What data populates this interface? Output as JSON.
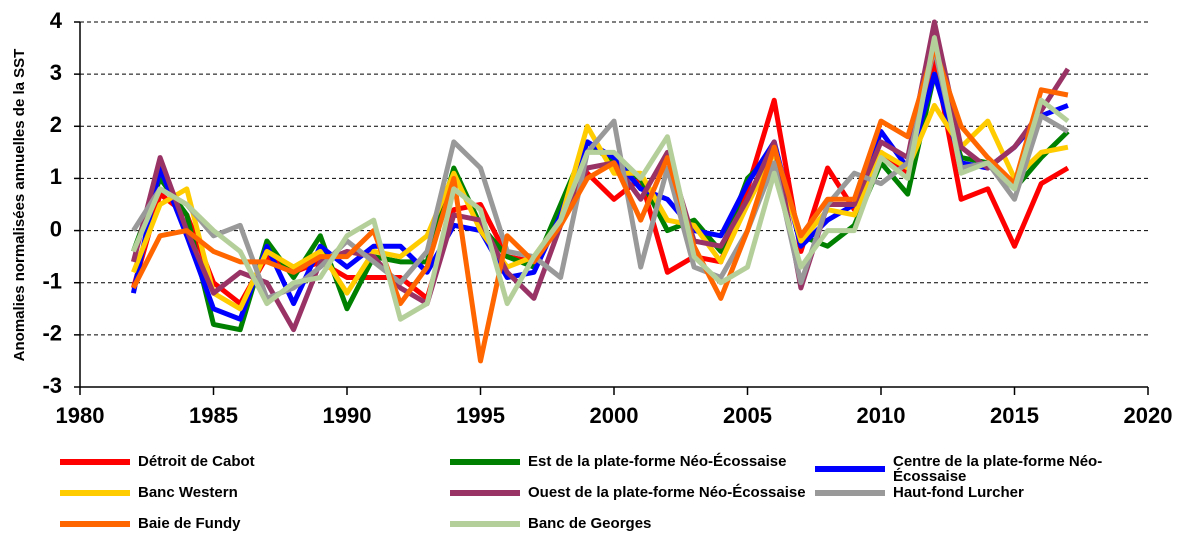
{
  "chart_data": {
    "type": "line",
    "ylabel": "Anomalies normalisées annuelles de la SST",
    "x": [
      1982,
      1983,
      1984,
      1985,
      1986,
      1987,
      1988,
      1989,
      1990,
      1991,
      1992,
      1993,
      1994,
      1995,
      1996,
      1997,
      1998,
      1999,
      2000,
      2001,
      2002,
      2003,
      2004,
      2005,
      2006,
      2007,
      2008,
      2009,
      2010,
      2011,
      2012,
      2013,
      2014,
      2015,
      2016,
      2017
    ],
    "xlim": [
      1980,
      2020
    ],
    "xticks": [
      1980,
      1985,
      1990,
      1995,
      2000,
      2005,
      2010,
      2015,
      2020
    ],
    "ylim": [
      -3,
      4
    ],
    "yticks": [
      -3,
      -2,
      -1,
      0,
      1,
      2,
      3,
      4
    ],
    "grid": true,
    "series": [
      {
        "name": "Détroit de Cabot",
        "color": "#ff0000",
        "values": [
          -1.1,
          0.7,
          0.3,
          -1.0,
          -1.4,
          -0.5,
          -0.8,
          -0.6,
          -0.9,
          -0.9,
          -0.9,
          -1.3,
          0.4,
          0.5,
          -0.5,
          -0.6,
          0.2,
          1.1,
          0.6,
          1.0,
          -0.8,
          -0.5,
          -0.6,
          0.8,
          2.5,
          -0.4,
          1.2,
          0.4,
          1.5,
          1.1,
          3.3,
          0.6,
          0.8,
          -0.3,
          0.9,
          1.2
        ]
      },
      {
        "name": "Est de la plate-forme Néo-Écossaise",
        "color": "#008000",
        "values": [
          -0.4,
          1.0,
          0.3,
          -1.8,
          -1.9,
          -0.2,
          -0.9,
          -0.1,
          -1.5,
          -0.5,
          -0.6,
          -0.6,
          1.2,
          0.1,
          -0.5,
          -0.7,
          0.5,
          1.7,
          1.3,
          1.0,
          0.0,
          0.2,
          -0.4,
          1.0,
          1.5,
          -0.1,
          -0.3,
          0.1,
          1.3,
          0.7,
          3.0,
          1.4,
          1.3,
          0.8,
          1.4,
          1.9
        ]
      },
      {
        "name": "Centre de la plate-forme Néo-Écossaise",
        "color": "#0000ff",
        "values": [
          -1.2,
          1.2,
          -0.1,
          -1.5,
          -1.7,
          -0.3,
          -1.4,
          -0.3,
          -0.7,
          -0.3,
          -0.3,
          -0.8,
          0.1,
          0.0,
          -0.9,
          -0.8,
          0.3,
          1.7,
          1.4,
          0.8,
          0.6,
          0.0,
          -0.1,
          0.9,
          1.7,
          -0.3,
          0.2,
          0.5,
          1.9,
          1.2,
          3.0,
          1.3,
          1.2,
          1.6,
          2.2,
          2.4
        ]
      },
      {
        "name": "Banc Western",
        "color": "#ffcc00",
        "values": [
          -0.8,
          0.5,
          0.8,
          -1.2,
          -1.5,
          -0.4,
          -0.7,
          -0.4,
          -1.2,
          -0.4,
          -0.5,
          -0.1,
          1.1,
          0.0,
          -0.7,
          -0.5,
          0.2,
          2.0,
          1.1,
          1.1,
          0.2,
          0.1,
          -0.6,
          0.5,
          1.5,
          -0.2,
          0.4,
          0.3,
          1.5,
          1.2,
          2.4,
          1.6,
          2.1,
          1.0,
          1.5,
          1.6
        ]
      },
      {
        "name": "Ouest de la plate-forme Néo-Écossaise",
        "color": "#993366",
        "values": [
          -0.6,
          1.4,
          0.0,
          -1.2,
          -0.8,
          -1.0,
          -1.9,
          -0.6,
          -0.4,
          -0.5,
          -1.1,
          -1.4,
          0.3,
          0.2,
          -0.8,
          -1.3,
          0.1,
          1.2,
          1.3,
          0.6,
          1.5,
          -0.2,
          -0.3,
          0.6,
          1.7,
          -1.1,
          0.5,
          0.5,
          1.7,
          1.4,
          4.0,
          1.6,
          1.2,
          1.6,
          2.3,
          3.1
        ]
      },
      {
        "name": "Haut-fond Lurcher",
        "color": "#999999",
        "values": [
          0.0,
          0.8,
          0.5,
          -0.1,
          0.1,
          -1.3,
          -1.1,
          -0.7,
          -0.2,
          -0.6,
          -1.0,
          -0.4,
          1.7,
          1.2,
          -0.4,
          -0.5,
          -0.9,
          1.5,
          2.1,
          -0.7,
          1.2,
          -0.7,
          -0.9,
          0.0,
          1.3,
          -1.0,
          0.5,
          1.1,
          0.9,
          1.3,
          3.5,
          1.2,
          1.3,
          0.6,
          2.2,
          1.9
        ]
      },
      {
        "name": "Baie de Fundy",
        "color": "#ff6600",
        "values": [
          -1.1,
          -0.1,
          0.0,
          -0.4,
          -0.6,
          -0.6,
          -0.8,
          -0.5,
          -0.5,
          0.0,
          -1.4,
          -0.7,
          1.0,
          -2.5,
          -0.1,
          -0.6,
          0.1,
          1.0,
          1.3,
          0.2,
          1.4,
          -0.3,
          -1.3,
          0.0,
          1.6,
          -0.1,
          0.6,
          0.6,
          2.1,
          1.8,
          3.5,
          2.0,
          1.4,
          0.9,
          2.7,
          2.6
        ]
      },
      {
        "name": "Banc de Georges",
        "color": "#b5cf9b",
        "values": [
          -0.4,
          0.8,
          0.5,
          0.0,
          -0.4,
          -1.4,
          -1.0,
          -0.9,
          -0.1,
          0.2,
          -1.7,
          -1.4,
          0.8,
          0.4,
          -1.4,
          -0.5,
          0.2,
          1.5,
          1.5,
          1.0,
          1.8,
          -0.5,
          -1.0,
          -0.7,
          1.1,
          -0.7,
          0.0,
          0.0,
          1.4,
          1.0,
          3.7,
          1.1,
          1.3,
          0.8,
          2.5,
          2.1
        ]
      }
    ]
  }
}
